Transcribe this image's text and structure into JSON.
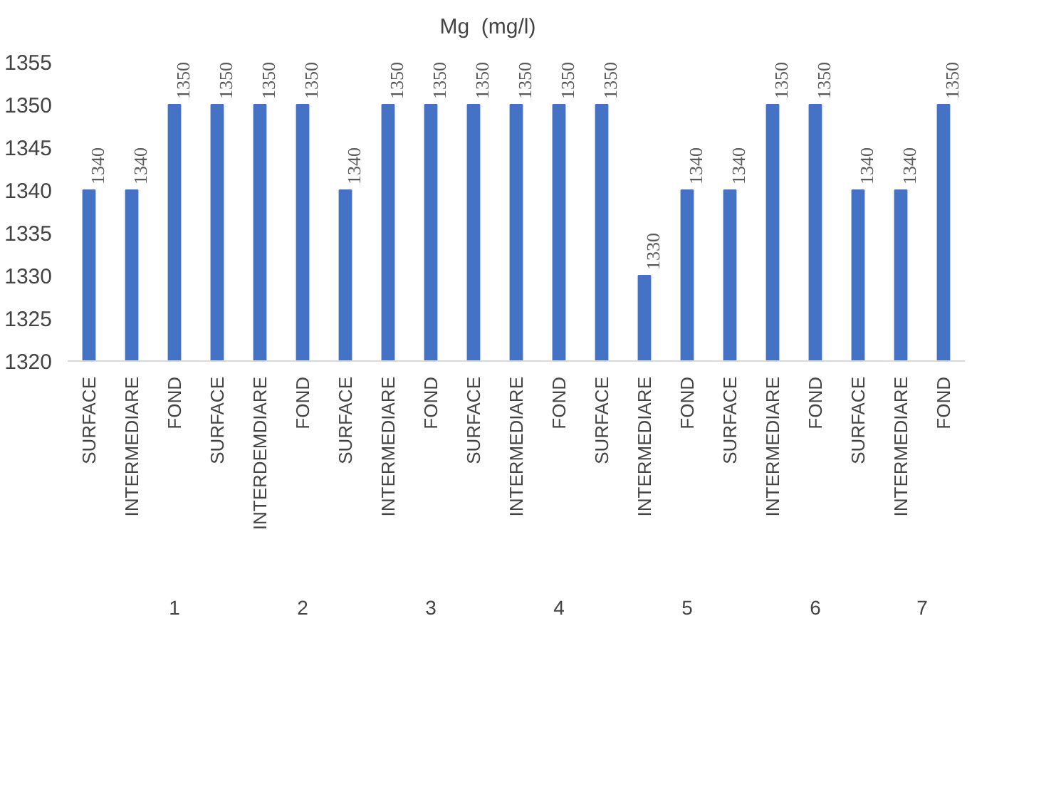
{
  "chart_data": {
    "type": "bar",
    "categories": [
      "SURFACE",
      "INTERMEDIARE",
      "FOND",
      "SURFACE",
      "INTERDEMDIARE",
      "FOND",
      "SURFACE",
      "INTERMEDIARE",
      "FOND",
      "SURFACE",
      "INTERMEDIARE",
      "FOND",
      "SURFACE",
      "INTERMEDIARE",
      "FOND",
      "SURFACE",
      "INTERMEDIARE",
      "FOND",
      "SURFACE",
      "INTERMEDIARE",
      "FOND"
    ],
    "series": [
      {
        "name": "Mg  (mg/l)",
        "color": "#4472c4",
        "values": [
          1340,
          1340,
          1350,
          1350,
          1350,
          1350,
          1340,
          1350,
          1350,
          1350,
          1350,
          1350,
          1350,
          1330,
          1340,
          1340,
          1350,
          1350,
          1340,
          1340,
          1350
        ]
      }
    ],
    "annotations": [
      "1",
      "2",
      "3",
      "4",
      "5",
      "6",
      "7"
    ],
    "ylim": [
      1320,
      1355
    ],
    "yticks": [
      1320,
      1325,
      1330,
      1335,
      1340,
      1345,
      1350,
      1355
    ],
    "data_labels": true,
    "legend": "top",
    "grid": false
  }
}
